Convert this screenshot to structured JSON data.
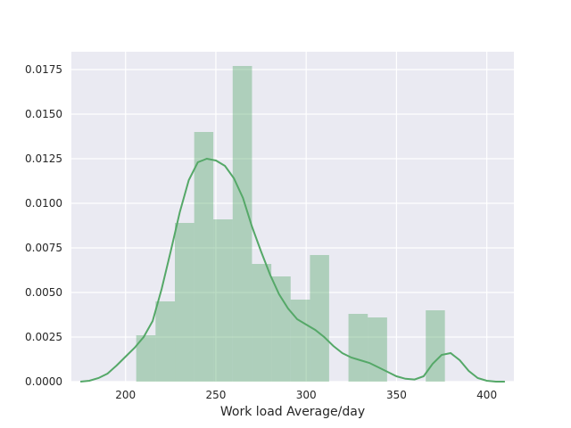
{
  "chart_data": {
    "type": "bar",
    "subtype": "histogram-with-kde",
    "title": "",
    "xlabel": "Work load Average/day",
    "ylabel": "",
    "xlim": [
      170,
      415
    ],
    "ylim": [
      0,
      0.0185
    ],
    "x_ticks": [
      200,
      250,
      300,
      350,
      400
    ],
    "y_ticks": [
      0.0,
      0.0025,
      0.005,
      0.0075,
      0.01,
      0.0125,
      0.015,
      0.0175
    ],
    "y_tick_labels": [
      "0.0000",
      "0.0025",
      "0.0050",
      "0.0075",
      "0.0100",
      "0.0125",
      "0.0150",
      "0.0175"
    ],
    "grid": true,
    "background_color": "#eaeaf2",
    "bar_color": "#55a868",
    "bar_alpha": 0.4,
    "line_color": "#55a868",
    "histogram": {
      "bin_edges": [
        205.9,
        216.6,
        227.3,
        238.0,
        248.6,
        259.3,
        270.0,
        280.7,
        291.4,
        302.1,
        312.7,
        323.4,
        334.1,
        344.8,
        355.5,
        366.2,
        376.8,
        387.5
      ],
      "densities": [
        0.0026,
        0.0045,
        0.0089,
        0.014,
        0.0091,
        0.0177,
        0.0066,
        0.0059,
        0.0046,
        0.0071,
        0.0,
        0.0038,
        0.0036,
        0.0,
        0.0,
        0.004,
        0.0
      ]
    },
    "kde": {
      "x": [
        175,
        180,
        185,
        190,
        195,
        200,
        205,
        210,
        215,
        220,
        225,
        230,
        235,
        240,
        245,
        250,
        255,
        260,
        265,
        270,
        275,
        280,
        285,
        290,
        295,
        300,
        305,
        310,
        315,
        320,
        325,
        330,
        335,
        340,
        345,
        350,
        355,
        360,
        365,
        370,
        375,
        380,
        385,
        390,
        395,
        400,
        405,
        410
      ],
      "y": [
        0.0,
        5e-05,
        0.0002,
        0.00045,
        0.0009,
        0.0014,
        0.0019,
        0.0025,
        0.0034,
        0.0052,
        0.0073,
        0.0095,
        0.0113,
        0.0123,
        0.0125,
        0.0124,
        0.0121,
        0.0114,
        0.0103,
        0.0087,
        0.0073,
        0.006,
        0.0049,
        0.0041,
        0.0035,
        0.0032,
        0.0029,
        0.0025,
        0.002,
        0.0016,
        0.00135,
        0.0012,
        0.00105,
        0.0008,
        0.00055,
        0.0003,
        0.00016,
        0.00012,
        0.0003,
        0.001,
        0.0015,
        0.0016,
        0.0012,
        0.0006,
        0.0002,
        5e-05,
        0.0,
        0.0
      ]
    }
  }
}
